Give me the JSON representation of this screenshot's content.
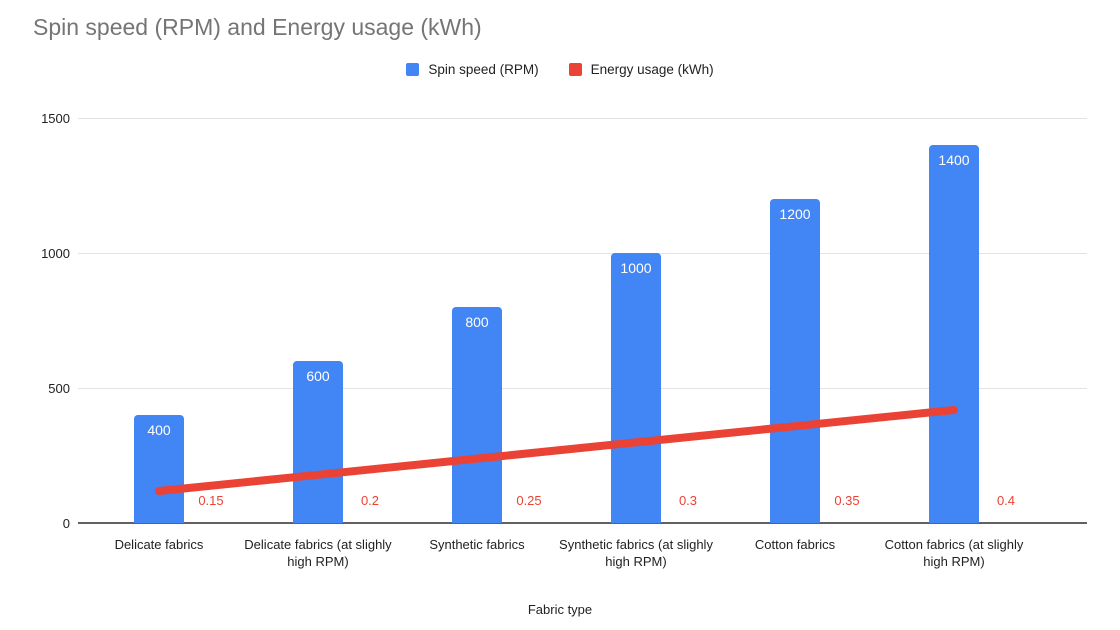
{
  "background": "#ffffff",
  "chart_data": {
    "type": "combo",
    "title": "Spin speed (RPM) and Energy usage (kWh)",
    "xlabel": "Fabric type",
    "ylabel": "",
    "categories": [
      "Delicate fabrics",
      "Delicate fabrics (at slighly high RPM)",
      "Synthetic fabrics",
      "Synthetic fabrics (at slighly high RPM)",
      "Cotton fabrics",
      "Cotton fabrics (at slighly high RPM)"
    ],
    "series": [
      {
        "name": "Spin speed (RPM)",
        "type": "bar",
        "color": "#4285f4",
        "values": [
          400,
          600,
          800,
          1000,
          1200,
          1400
        ],
        "data_labels": [
          "400",
          "600",
          "800",
          "1000",
          "1200",
          "1400"
        ],
        "data_label_color": "#ffffff"
      },
      {
        "name": "Energy usage (kWh)",
        "type": "line",
        "color": "#ea4335",
        "values": [
          0.15,
          0.2,
          0.25,
          0.3,
          0.35,
          0.4
        ],
        "data_labels": [
          "0.15",
          "0.2",
          "0.25",
          "0.3",
          "0.35",
          "0.4"
        ],
        "data_label_color": "#ea4335",
        "plotted_on_hidden_secondary_axis": true
      }
    ],
    "ylim": [
      0,
      1500
    ],
    "yticks": [
      0,
      500,
      1000,
      1500
    ],
    "ytick_labels": [
      "0",
      "500",
      "1000",
      "1500"
    ],
    "grid": true,
    "legend_position": "top",
    "title_color": "#757575",
    "axis_text_color": "#222222",
    "gridline_color": "#e3e3e3",
    "baseline_color": "#616161"
  }
}
